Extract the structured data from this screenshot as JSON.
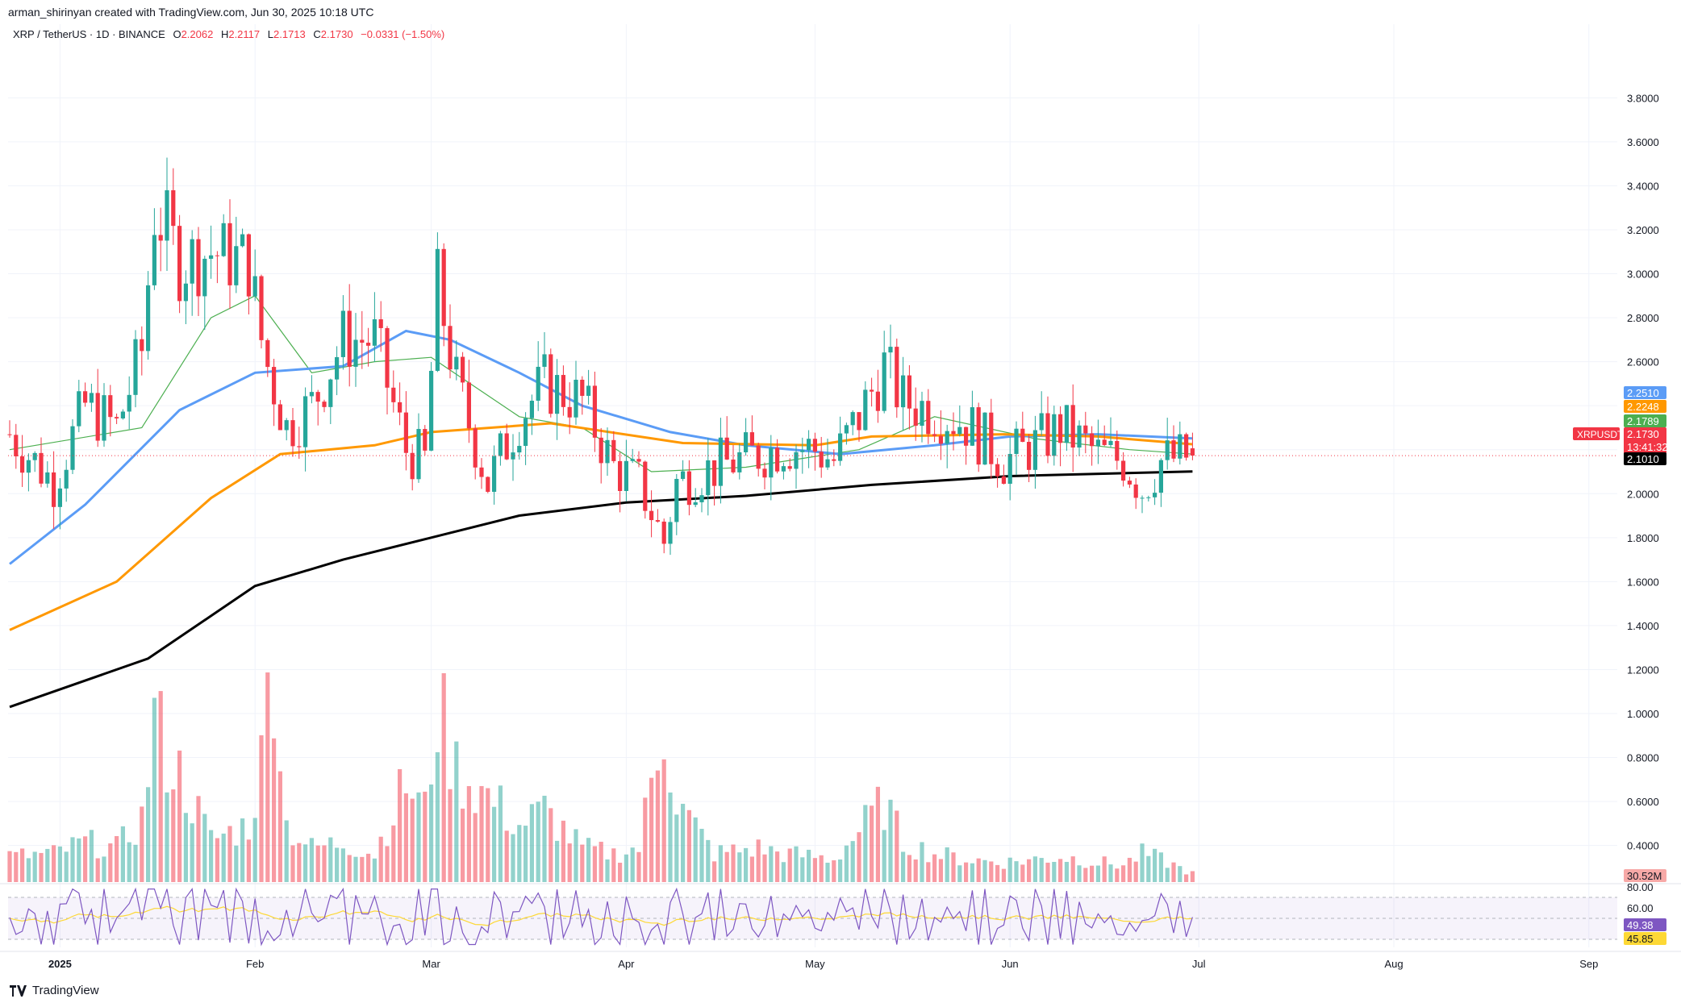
{
  "header": {
    "attribution": "arman_shirinyan created with TradingView.com, Jun 30, 2025 10:18 UTC",
    "symbol_line": "XRP / TetherUS · 1D · BINANCE",
    "ohlc": [
      {
        "label": "O",
        "value": "2.2062"
      },
      {
        "label": "H",
        "value": "2.2117"
      },
      {
        "label": "L",
        "value": "2.1713"
      },
      {
        "label": "C",
        "value": "2.1730"
      }
    ],
    "change": "−0.0331 (−1.50%)"
  },
  "branding": {
    "logo_text": "TradingView"
  },
  "colors": {
    "up": "#26a69a",
    "down": "#f23645",
    "ma_blue": "#5b9cf6",
    "ma_orange": "#ff9800",
    "ma_black": "#000000",
    "ma_green": "#4caf50",
    "rsi_line": "#7e57c2",
    "rsi_ma": "#fdd835"
  },
  "price_labels": [
    {
      "text": "2.2510",
      "value": 2.251,
      "color": "#5b9cf6"
    },
    {
      "text": "2.2248",
      "value": 2.2248,
      "color": "#ff9800"
    },
    {
      "text": "2.1789",
      "value": 2.1789,
      "color": "#4caf50"
    },
    {
      "text": "2.1730",
      "value": 2.173,
      "color": "#f23645",
      "countdown": "13:41:32",
      "ticker": "XRPUSDT"
    },
    {
      "text": "2.1010",
      "value": 2.101,
      "color": "#000000"
    }
  ],
  "volume_label": "30.52M",
  "rsi_labels": [
    {
      "text": "49.38",
      "value": 49.38,
      "color": "#7e57c2"
    },
    {
      "text": "45.85",
      "value": 45.85,
      "color": "#fdd835"
    }
  ],
  "chart_data": {
    "type": "candlestick",
    "price_axis": {
      "ticks": [
        "3.8000",
        "3.6000",
        "3.4000",
        "3.2000",
        "3.0000",
        "2.8000",
        "2.6000",
        "2.4000",
        "2.2000",
        "2.0000",
        "1.8000",
        "1.6000",
        "1.4000",
        "1.2000",
        "1.0000",
        "0.8000",
        "0.6000",
        "0.4000"
      ],
      "range": [
        0.23,
        3.97
      ]
    },
    "rsi_axis": {
      "ticks": [
        "80.00",
        "60.00"
      ],
      "bands": [
        30,
        50,
        70
      ]
    },
    "x_axis": {
      "ticks": [
        "2025",
        "Feb",
        "Mar",
        "Apr",
        "May",
        "Jun",
        "Jul",
        "Aug",
        "Sep"
      ]
    },
    "start_date": "2024-12-24",
    "last_date": "2025-06-30",
    "key_points": [
      {
        "date": "2024-12-24",
        "price": 2.27,
        "vol": 0.09
      },
      {
        "date": "2024-12-31",
        "price": 2.05,
        "vol": 0.1
      },
      {
        "date": "2025-01-05",
        "price": 2.4,
        "vol": 0.14
      },
      {
        "date": "2025-01-10",
        "price": 2.3,
        "vol": 0.12
      },
      {
        "date": "2025-01-14",
        "price": 2.65,
        "vol": 0.22
      },
      {
        "date": "2025-01-16",
        "price": 3.28,
        "vol": 0.58
      },
      {
        "date": "2025-01-18",
        "price": 3.2,
        "vol": 0.45
      },
      {
        "date": "2025-01-20",
        "price": 3.05,
        "vol": 0.38
      },
      {
        "date": "2025-01-25",
        "price": 3.1,
        "vol": 0.15
      },
      {
        "date": "2025-01-31",
        "price": 3.05,
        "vol": 0.2
      },
      {
        "date": "2025-02-02",
        "price": 2.7,
        "vol": 0.42
      },
      {
        "date": "2025-02-03",
        "price": 2.58,
        "vol": 1.1
      },
      {
        "date": "2025-02-06",
        "price": 2.3,
        "vol": 0.2
      },
      {
        "date": "2025-02-10",
        "price": 2.4,
        "vol": 0.12
      },
      {
        "date": "2025-02-15",
        "price": 2.7,
        "vol": 0.14
      },
      {
        "date": "2025-02-20",
        "price": 2.7,
        "vol": 0.1
      },
      {
        "date": "2025-02-25",
        "price": 2.2,
        "vol": 0.35
      },
      {
        "date": "2025-02-28",
        "price": 2.15,
        "vol": 0.25
      },
      {
        "date": "2025-03-02",
        "price": 2.95,
        "vol": 0.62
      },
      {
        "date": "2025-03-05",
        "price": 2.5,
        "vol": 0.4
      },
      {
        "date": "2025-03-10",
        "price": 2.05,
        "vol": 0.3
      },
      {
        "date": "2025-03-15",
        "price": 2.35,
        "vol": 0.2
      },
      {
        "date": "2025-03-19",
        "price": 2.5,
        "vol": 0.25
      },
      {
        "date": "2025-03-25",
        "price": 2.42,
        "vol": 0.12
      },
      {
        "date": "2025-03-30",
        "price": 2.12,
        "vol": 0.1
      },
      {
        "date": "2025-04-03",
        "price": 2.05,
        "vol": 0.12
      },
      {
        "date": "2025-04-07",
        "price": 1.78,
        "vol": 0.58
      },
      {
        "date": "2025-04-09",
        "price": 2.05,
        "vol": 0.28
      },
      {
        "date": "2025-04-15",
        "price": 2.12,
        "vol": 0.1
      },
      {
        "date": "2025-04-22",
        "price": 2.18,
        "vol": 0.12
      },
      {
        "date": "2025-04-26",
        "price": 2.22,
        "vol": 0.1
      },
      {
        "date": "2025-05-01",
        "price": 2.2,
        "vol": 0.09
      },
      {
        "date": "2025-05-04",
        "price": 2.15,
        "vol": 0.08
      },
      {
        "date": "2025-05-08",
        "price": 2.35,
        "vol": 0.18
      },
      {
        "date": "2025-05-12",
        "price": 2.58,
        "vol": 0.28
      },
      {
        "date": "2025-05-15",
        "price": 2.42,
        "vol": 0.14
      },
      {
        "date": "2025-05-20",
        "price": 2.38,
        "vol": 0.1
      },
      {
        "date": "2025-05-25",
        "price": 2.32,
        "vol": 0.08
      },
      {
        "date": "2025-05-31",
        "price": 2.15,
        "vol": 0.07
      },
      {
        "date": "2025-06-05",
        "price": 2.22,
        "vol": 0.08
      },
      {
        "date": "2025-06-09",
        "price": 2.3,
        "vol": 0.09
      },
      {
        "date": "2025-06-15",
        "price": 2.18,
        "vol": 0.07
      },
      {
        "date": "2025-06-19",
        "price": 2.15,
        "vol": 0.06
      },
      {
        "date": "2025-06-22",
        "price": 2.02,
        "vol": 0.1
      },
      {
        "date": "2025-06-25",
        "price": 2.15,
        "vol": 0.08
      },
      {
        "date": "2025-06-30",
        "price": 2.173,
        "vol": 0.03
      }
    ],
    "moving_averages": [
      {
        "color": "#4caf50",
        "points": [
          [
            "2024-12-24",
            2.2
          ],
          [
            "2025-01-14",
            2.3
          ],
          [
            "2025-01-25",
            2.8
          ],
          [
            "2025-02-01",
            2.9
          ],
          [
            "2025-02-10",
            2.55
          ],
          [
            "2025-02-20",
            2.6
          ],
          [
            "2025-03-01",
            2.62
          ],
          [
            "2025-03-15",
            2.35
          ],
          [
            "2025-03-25",
            2.3
          ],
          [
            "2025-04-05",
            2.1
          ],
          [
            "2025-04-20",
            2.12
          ],
          [
            "2025-05-08",
            2.2
          ],
          [
            "2025-05-20",
            2.35
          ],
          [
            "2025-06-05",
            2.25
          ],
          [
            "2025-06-20",
            2.2
          ],
          [
            "2025-06-30",
            2.18
          ]
        ]
      },
      {
        "color": "#5b9cf6",
        "points": [
          [
            "2024-12-24",
            1.68
          ],
          [
            "2025-01-05",
            1.95
          ],
          [
            "2025-01-20",
            2.38
          ],
          [
            "2025-02-01",
            2.55
          ],
          [
            "2025-02-15",
            2.58
          ],
          [
            "2025-02-25",
            2.74
          ],
          [
            "2025-03-04",
            2.7
          ],
          [
            "2025-03-15",
            2.55
          ],
          [
            "2025-03-25",
            2.4
          ],
          [
            "2025-04-08",
            2.28
          ],
          [
            "2025-04-20",
            2.22
          ],
          [
            "2025-05-05",
            2.18
          ],
          [
            "2025-05-20",
            2.22
          ],
          [
            "2025-06-01",
            2.26
          ],
          [
            "2025-06-15",
            2.27
          ],
          [
            "2025-06-30",
            2.251
          ]
        ]
      },
      {
        "color": "#ff9800",
        "points": [
          [
            "2024-12-24",
            1.38
          ],
          [
            "2025-01-10",
            1.6
          ],
          [
            "2025-01-25",
            1.98
          ],
          [
            "2025-02-05",
            2.18
          ],
          [
            "2025-02-20",
            2.22
          ],
          [
            "2025-03-01",
            2.28
          ],
          [
            "2025-03-20",
            2.32
          ],
          [
            "2025-04-10",
            2.23
          ],
          [
            "2025-05-01",
            2.22
          ],
          [
            "2025-05-10",
            2.26
          ],
          [
            "2025-05-31",
            2.27
          ],
          [
            "2025-06-15",
            2.26
          ],
          [
            "2025-06-30",
            2.2248
          ]
        ]
      },
      {
        "color": "#000000",
        "points": [
          [
            "2024-12-24",
            1.03
          ],
          [
            "2025-01-15",
            1.25
          ],
          [
            "2025-02-01",
            1.58
          ],
          [
            "2025-02-15",
            1.7
          ],
          [
            "2025-03-01",
            1.8
          ],
          [
            "2025-03-15",
            1.9
          ],
          [
            "2025-04-01",
            1.96
          ],
          [
            "2025-04-20",
            1.99
          ],
          [
            "2025-05-10",
            2.04
          ],
          [
            "2025-06-01",
            2.08
          ],
          [
            "2025-06-30",
            2.101
          ]
        ]
      }
    ]
  }
}
